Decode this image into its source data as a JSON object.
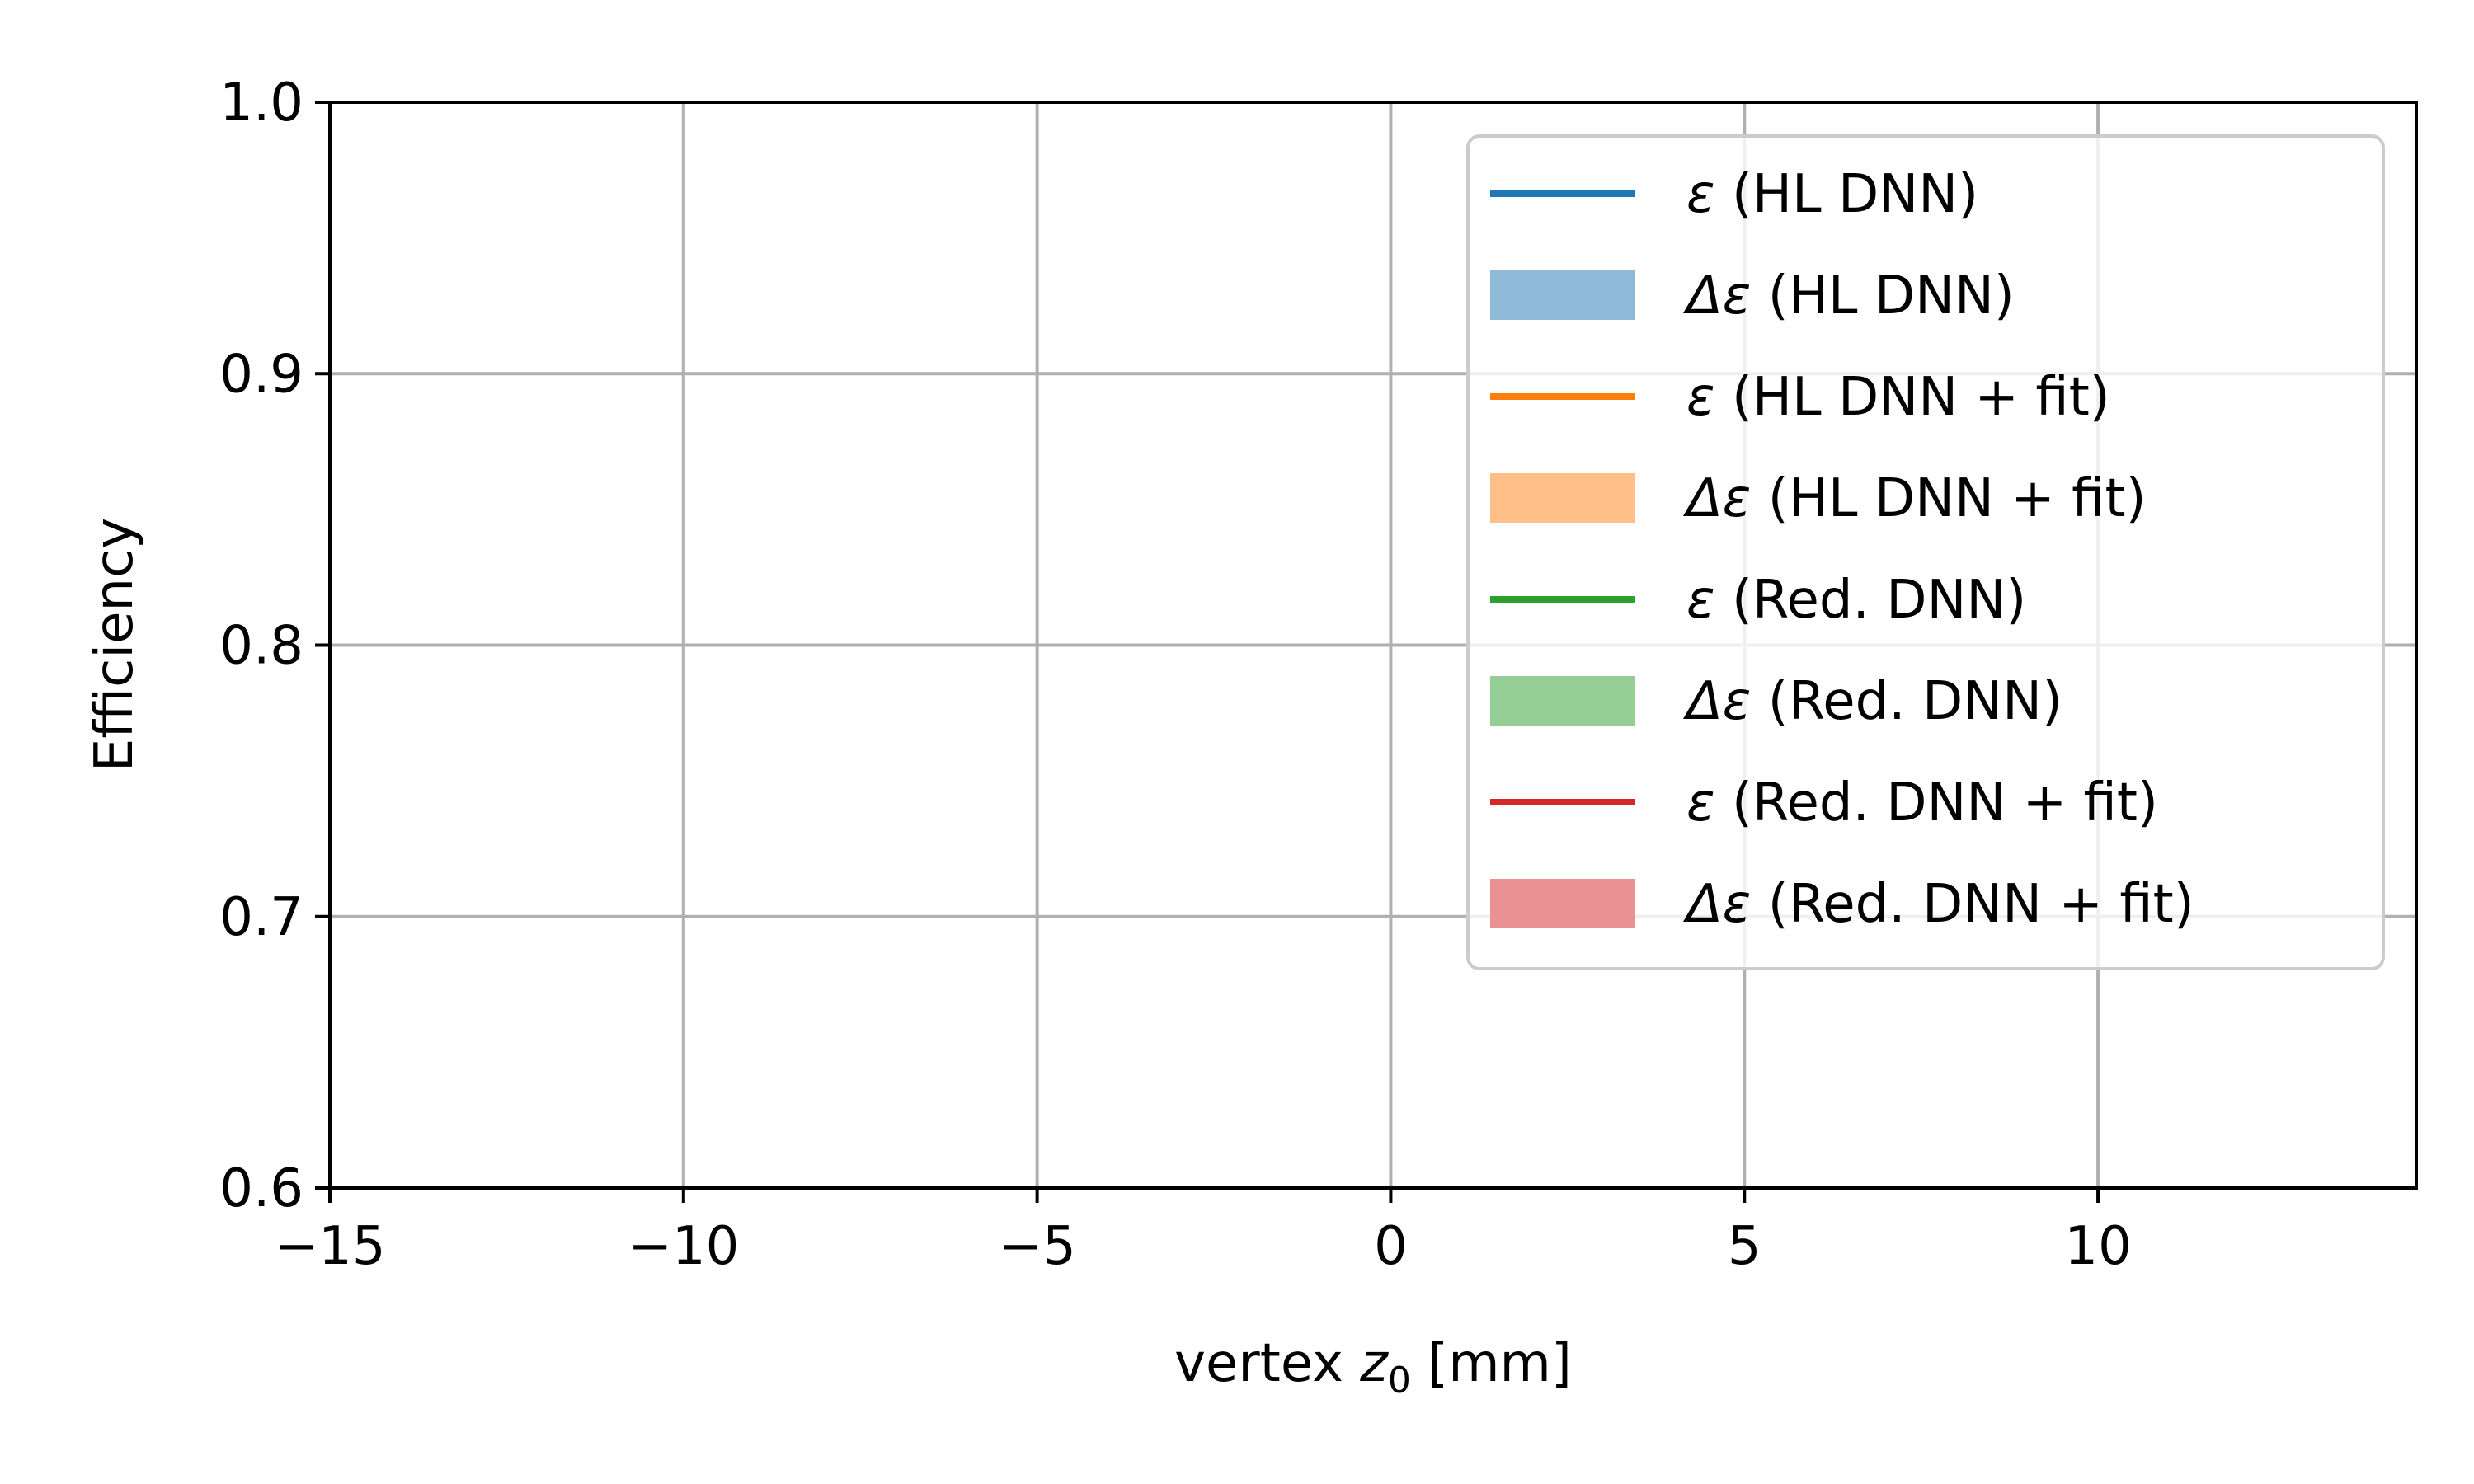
{
  "chart_data": {
    "type": "line",
    "x_label_prefix": "vertex ",
    "x_label_var": "z",
    "x_label_sub": "0",
    "x_label_suffix": " [mm]",
    "ylabel": "Efficiency",
    "xlim": [
      -15,
      14.5
    ],
    "ylim": [
      0.6,
      1.0
    ],
    "xticks": [
      -15,
      -10,
      -5,
      0,
      5,
      10
    ],
    "xtick_labels": [
      "−15",
      "−10",
      "−5",
      "0",
      "5",
      "10"
    ],
    "yticks": [
      0.6,
      0.7,
      0.8,
      0.9,
      1.0
    ],
    "ytick_labels": [
      "0.6",
      "0.7",
      "0.8",
      "0.9",
      "1.0"
    ],
    "grid": true,
    "legend_position": "top-right",
    "series": [],
    "legend": [
      {
        "kind": "line",
        "symbol": "ε",
        "label": " (HL DNN)",
        "color": "#1f77b4"
      },
      {
        "kind": "band",
        "symbol": "Δε",
        "label": " (HL DNN)",
        "color": "#8fbbd9"
      },
      {
        "kind": "line",
        "symbol": "ε",
        "label": " (HL DNN + fit)",
        "color": "#ff7f0e"
      },
      {
        "kind": "band",
        "symbol": "Δε",
        "label": " (HL DNN + fit)",
        "color": "#ffbf86"
      },
      {
        "kind": "line",
        "symbol": "ε",
        "label": " (Red. DNN)",
        "color": "#2ca02c"
      },
      {
        "kind": "band",
        "symbol": "Δε",
        "label": " (Red. DNN)",
        "color": "#95cf95"
      },
      {
        "kind": "line",
        "symbol": "ε",
        "label": " (Red. DNN + fit)",
        "color": "#d62728"
      },
      {
        "kind": "band",
        "symbol": "Δε",
        "label": " (Red. DNN + fit)",
        "color": "#ea9293"
      }
    ]
  }
}
